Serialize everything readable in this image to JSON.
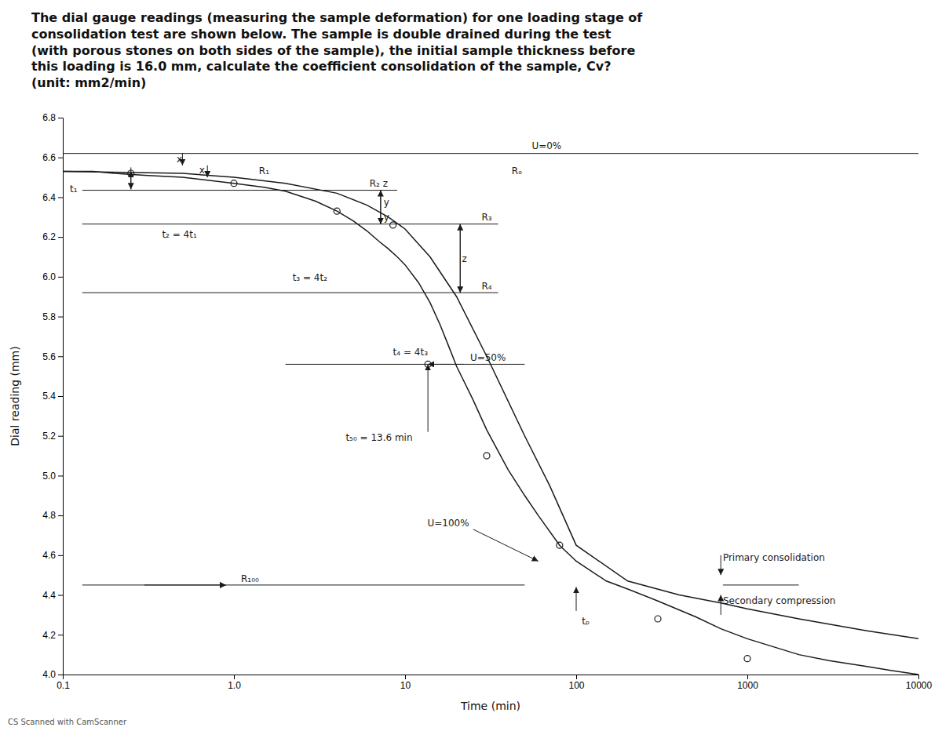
{
  "chart_data": {
    "type": "line",
    "title": "The dial gauge readings (measuring the sample deformation) for one loading stage of\nconsolidation test are shown below. The sample is double drained during the test\n(with porous stones on both sides of the sample), the initial sample thickness before\nthis loading is 16.0 mm, calculate the coefficient consolidation of the sample, Cv?\n(unit: mm2/min)",
    "footer": "CS  Scanned with CamScanner",
    "xlabel": "Time (min)",
    "ylabel": "Dial reading (mm)",
    "log": "x",
    "grid": false,
    "color": "#1a1a1a",
    "xlim": [
      0.1,
      10000
    ],
    "ylim": [
      4.0,
      6.8
    ],
    "xticks": [
      0.1,
      {
        "value": 1,
        "label": "1.0"
      },
      10,
      100,
      1000,
      10000
    ],
    "yticks": [
      {
        "value": 4,
        "label": "4.0"
      },
      4.2,
      4.4,
      4.6,
      4.8,
      {
        "value": 5,
        "label": "5.0"
      },
      5.2,
      5.4,
      5.6,
      5.8,
      {
        "value": 6,
        "label": "6.0"
      },
      6.2,
      6.4,
      6.6,
      6.8
    ],
    "series": [
      {
        "type": "line",
        "line_style": "solid",
        "x": [
          0.1,
          0.15,
          0.2,
          0.3,
          0.5,
          0.8,
          1.0,
          1.5,
          2.0,
          3.0,
          4.0,
          5.0,
          6.0,
          7.0,
          8.0,
          9.0,
          10.0,
          12.0,
          14.0,
          16.0,
          18.0,
          20.0,
          25.0,
          30.0,
          40.0,
          50.0,
          60.0,
          80.0,
          100.0,
          150.0,
          200.0,
          300.0,
          500.0,
          700.0,
          1000.0,
          2000.0,
          3000.0,
          5000.0,
          7000.0,
          10000.0
        ],
        "values": [
          6.53,
          6.53,
          6.52,
          6.51,
          6.5,
          6.48,
          6.47,
          6.45,
          6.43,
          6.38,
          6.33,
          6.28,
          6.23,
          6.18,
          6.14,
          6.1,
          6.06,
          5.97,
          5.87,
          5.76,
          5.65,
          5.55,
          5.38,
          5.23,
          5.03,
          4.9,
          4.8,
          4.65,
          4.57,
          4.47,
          4.43,
          4.37,
          4.29,
          4.23,
          4.18,
          4.1,
          4.07,
          4.04,
          4.02,
          4.0
        ]
      },
      {
        "type": "line",
        "line_style": "solid",
        "x": [
          0.1,
          0.5,
          1.0,
          2.0,
          4.0,
          6.0,
          8.0,
          10.0,
          14.0,
          20.0,
          30.0,
          50.0,
          70.0,
          100.0,
          200.0,
          400.0,
          700.0,
          1000.0,
          2000.0,
          5000.0,
          10000.0
        ],
        "values": [
          6.53,
          6.52,
          6.5,
          6.47,
          6.42,
          6.36,
          6.3,
          6.24,
          6.1,
          5.9,
          5.6,
          5.2,
          4.95,
          4.65,
          4.47,
          4.4,
          4.36,
          4.33,
          4.28,
          4.22,
          4.18
        ]
      },
      {
        "type": "scatter",
        "marker": "circle",
        "x": [
          0.25,
          1.0,
          4.0,
          8.5,
          13.6,
          30.0,
          80.0,
          300.0,
          1000.0
        ],
        "values": [
          6.52,
          6.47,
          6.33,
          6.26,
          5.56,
          5.1,
          4.65,
          4.28,
          4.08
        ]
      }
    ],
    "lines": [
      {
        "y": 6.62
      },
      {
        "x": [
          0.13,
          9.0
        ],
        "y": 6.435
      },
      {
        "x": [
          0.13,
          35.0
        ],
        "y": 6.265
      },
      {
        "x": [
          0.13,
          35.0
        ],
        "y": 5.92
      },
      {
        "x": [
          2.0,
          50.0
        ],
        "y": 5.56
      },
      {
        "x": [
          0.13,
          50.0
        ],
        "y": 4.45
      },
      {
        "x": [
          720,
          2000
        ],
        "y": 4.45
      }
    ],
    "arrows": [
      {
        "from": [
          0.25,
          6.44
        ],
        "to": [
          0.25,
          6.53
        ]
      },
      {
        "from": [
          0.25,
          6.55
        ],
        "to": [
          0.25,
          6.44
        ]
      },
      {
        "from": [
          0.5,
          6.62
        ],
        "to": [
          0.5,
          6.56
        ]
      },
      {
        "from": [
          0.7,
          6.56
        ],
        "to": [
          0.7,
          6.5
        ]
      },
      {
        "from": [
          7.2,
          6.435
        ],
        "to": [
          7.2,
          6.265
        ]
      },
      {
        "from": [
          7.2,
          6.265
        ],
        "to": [
          7.2,
          6.435
        ]
      },
      {
        "from": [
          21.0,
          6.265
        ],
        "to": [
          21.0,
          5.92
        ]
      },
      {
        "from": [
          21.0,
          5.92
        ],
        "to": [
          21.0,
          6.265
        ]
      },
      {
        "from": [
          22,
          5.56
        ],
        "to": [
          13.6,
          5.56
        ]
      },
      {
        "from": [
          13.6,
          5.22
        ],
        "to": [
          13.6,
          5.56
        ]
      },
      {
        "from": [
          25,
          4.73
        ],
        "to": [
          60,
          4.57
        ]
      },
      {
        "from": [
          0.3,
          4.45
        ],
        "to": [
          0.9,
          4.45
        ]
      },
      {
        "from": [
          700,
          4.6
        ],
        "to": [
          700,
          4.5
        ]
      },
      {
        "from": [
          700,
          4.3
        ],
        "to": [
          700,
          4.4
        ]
      },
      {
        "from": [
          100,
          4.32
        ],
        "to": [
          100,
          4.44
        ]
      }
    ],
    "annotations": [
      {
        "text": "U=0%",
        "x": 55,
        "y": 6.63
      },
      {
        "text": "Rₒ",
        "x": 42,
        "y": 6.56
      },
      {
        "text": "R₁",
        "x": 1.4,
        "y": 6.505
      },
      {
        "text": "R₂  z",
        "x": 6.2,
        "y": 6.44
      },
      {
        "text": "R₃",
        "x": 28,
        "y": 6.27
      },
      {
        "text": "R₄",
        "x": 28,
        "y": 5.925
      },
      {
        "text": "t₁",
        "x": 0.11,
        "y": 6.44
      },
      {
        "text": "x",
        "x": 0.48,
        "y": 6.59
      },
      {
        "text": "x",
        "x": 0.65,
        "y": 6.535
      },
      {
        "text": "y",
        "x": 7.5,
        "y": 6.375
      },
      {
        "text": "y",
        "x": 7.5,
        "y": 6.3
      },
      {
        "text": "t₂ = 4t₁",
        "x": 0.38,
        "y": 6.215
      },
      {
        "text": "t₃ = 4t₂",
        "x": 2.2,
        "y": 5.995
      },
      {
        "text": "t₄ = 4t₃",
        "x": 8.5,
        "y": 5.62
      },
      {
        "text": "z",
        "x": 21.5,
        "y": 6.0925
      },
      {
        "text": "U=50%",
        "x": 24,
        "y": 5.565
      },
      {
        "text": "t₅₀ = 13.6 min",
        "x": 4.5,
        "y": 5.19
      },
      {
        "text": "U=100%",
        "x": 13.5,
        "y": 4.76
      },
      {
        "text": "R₁₀₀",
        "x": 1.1,
        "y": 4.455
      },
      {
        "text": "Primary consolidation",
        "x": 720,
        "y": 4.56
      },
      {
        "text": "Secondary compression",
        "x": 720,
        "y": 4.4
      },
      {
        "text": "tₚ",
        "x": 108,
        "y": 4.27
      }
    ]
  }
}
